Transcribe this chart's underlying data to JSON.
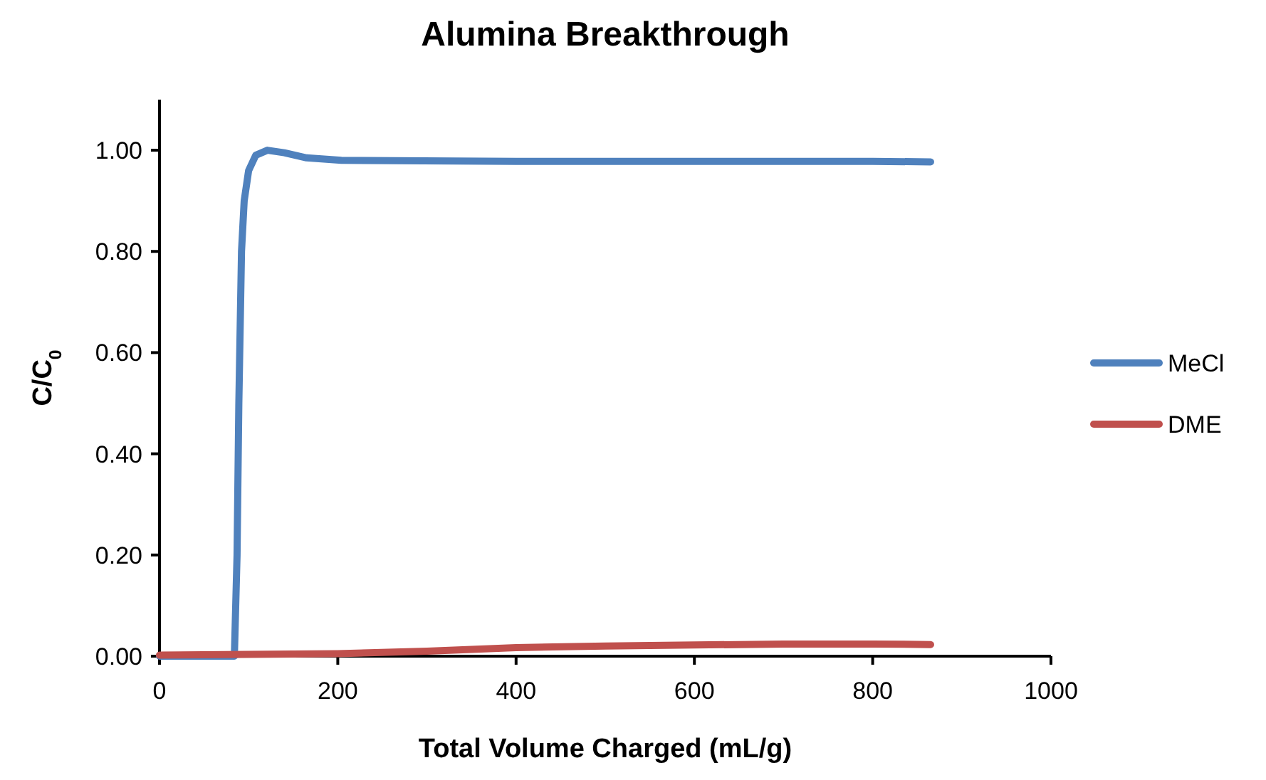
{
  "chart_data": {
    "type": "line",
    "title": "Alumina Breakthrough",
    "xlabel": "Total Volume Charged (mL/g)",
    "ylabel": "C/C$_{0}$",
    "xlim": [
      0,
      1000
    ],
    "xticks": [
      0,
      200,
      400,
      600,
      800,
      1000
    ],
    "ylim": [
      0,
      1.1
    ],
    "yticks": [
      {
        "value": 0,
        "label": "0.00"
      },
      {
        "value": 0.2,
        "label": "0.20"
      },
      {
        "value": 0.4,
        "label": "0.40"
      },
      {
        "value": 0.6,
        "label": "0.60"
      },
      {
        "value": 0.8,
        "label": "0.80"
      },
      {
        "value": 1,
        "label": "1.00"
      }
    ],
    "grid": false,
    "legend": "right",
    "line_style": "solid",
    "series": [
      {
        "name": "MeCl",
        "color": "#4f81bd",
        "x": [
          0,
          84,
          87,
          89,
          92,
          95,
          100,
          108,
          121,
          140,
          165,
          204,
          400,
          600,
          800,
          865
        ],
        "values": [
          0,
          0,
          0.2,
          0.5,
          0.8,
          0.9,
          0.96,
          0.99,
          1.0,
          0.995,
          0.985,
          0.98,
          0.978,
          0.978,
          0.978,
          0.977
        ]
      },
      {
        "name": "DME",
        "color": "#c0504d",
        "x": [
          0,
          200,
          300,
          400,
          500,
          600,
          700,
          800,
          865
        ],
        "values": [
          0.002,
          0.005,
          0.01,
          0.017,
          0.02,
          0.022,
          0.024,
          0.024,
          0.023
        ]
      }
    ]
  }
}
